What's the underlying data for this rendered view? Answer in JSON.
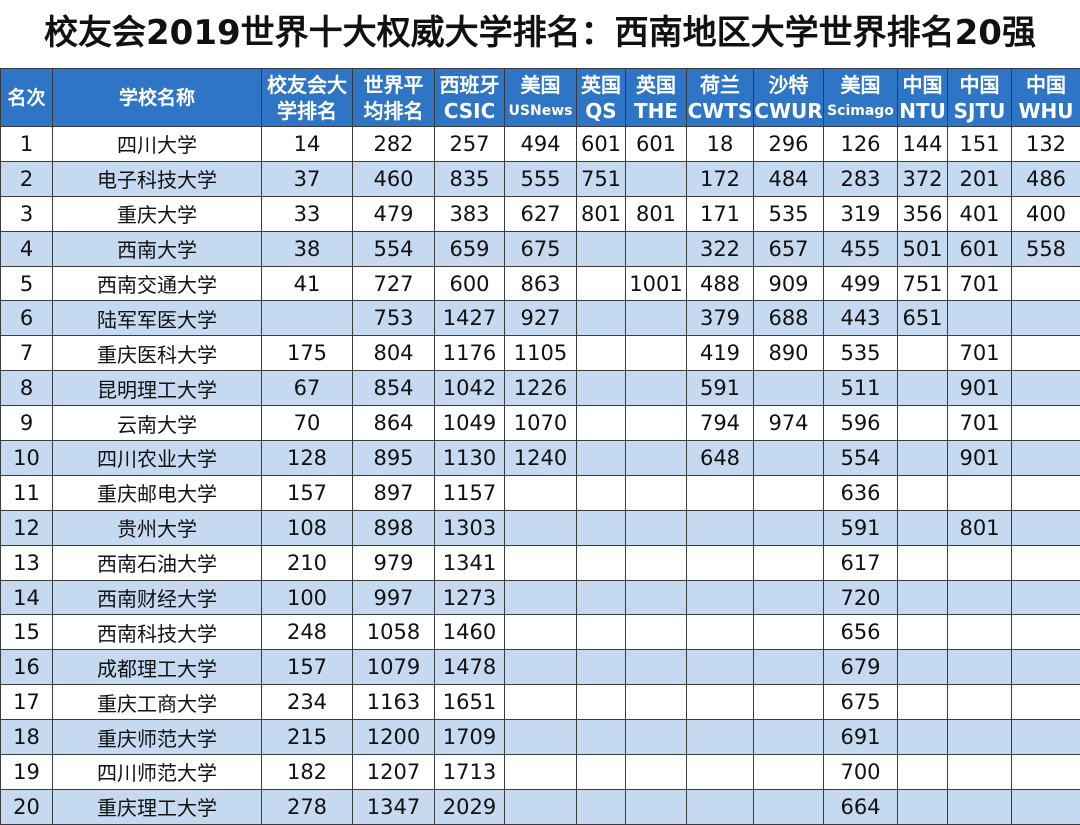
{
  "title": "校友会2019世界十大权威大学排名：西南地区大学世界排名20强",
  "headers": [
    {
      "l1": "名次",
      "l2": ""
    },
    {
      "l1": "学校名称",
      "l2": ""
    },
    {
      "l1": "校友会大",
      "l2": "学排名"
    },
    {
      "l1": "世界平",
      "l2": "均排名"
    },
    {
      "l1": "西班牙",
      "l2": "CSIC"
    },
    {
      "l1": "美国",
      "l2": "USNews"
    },
    {
      "l1": "英国",
      "l2": "QS"
    },
    {
      "l1": "英国",
      "l2": "THE"
    },
    {
      "l1": "荷兰",
      "l2": "CWTS"
    },
    {
      "l1": "沙特",
      "l2": "CWUR"
    },
    {
      "l1": "美国",
      "l2": "Scimago"
    },
    {
      "l1": "中国",
      "l2": "NTU"
    },
    {
      "l1": "中国",
      "l2": "SJTU"
    },
    {
      "l1": "中国",
      "l2": "WHU"
    }
  ],
  "rows": [
    [
      "1",
      "四川大学",
      "14",
      "282",
      "257",
      "494",
      "601",
      "601",
      "18",
      "296",
      "126",
      "144",
      "151",
      "132"
    ],
    [
      "2",
      "电子科技大学",
      "37",
      "460",
      "835",
      "555",
      "751",
      "",
      "172",
      "484",
      "283",
      "372",
      "201",
      "486"
    ],
    [
      "3",
      "重庆大学",
      "33",
      "479",
      "383",
      "627",
      "801",
      "801",
      "171",
      "535",
      "319",
      "356",
      "401",
      "400"
    ],
    [
      "4",
      "西南大学",
      "38",
      "554",
      "659",
      "675",
      "",
      "",
      "322",
      "657",
      "455",
      "501",
      "601",
      "558"
    ],
    [
      "5",
      "西南交通大学",
      "41",
      "727",
      "600",
      "863",
      "",
      "1001",
      "488",
      "909",
      "499",
      "751",
      "701",
      ""
    ],
    [
      "6",
      "陆军军医大学",
      "",
      "753",
      "1427",
      "927",
      "",
      "",
      "379",
      "688",
      "443",
      "651",
      "",
      ""
    ],
    [
      "7",
      "重庆医科大学",
      "175",
      "804",
      "1176",
      "1105",
      "",
      "",
      "419",
      "890",
      "535",
      "",
      "701",
      ""
    ],
    [
      "8",
      "昆明理工大学",
      "67",
      "854",
      "1042",
      "1226",
      "",
      "",
      "591",
      "",
      "511",
      "",
      "901",
      ""
    ],
    [
      "9",
      "云南大学",
      "70",
      "864",
      "1049",
      "1070",
      "",
      "",
      "794",
      "974",
      "596",
      "",
      "701",
      ""
    ],
    [
      "10",
      "四川农业大学",
      "128",
      "895",
      "1130",
      "1240",
      "",
      "",
      "648",
      "",
      "554",
      "",
      "901",
      ""
    ],
    [
      "11",
      "重庆邮电大学",
      "157",
      "897",
      "1157",
      "",
      "",
      "",
      "",
      "",
      "636",
      "",
      "",
      ""
    ],
    [
      "12",
      "贵州大学",
      "108",
      "898",
      "1303",
      "",
      "",
      "",
      "",
      "",
      "591",
      "",
      "801",
      ""
    ],
    [
      "13",
      "西南石油大学",
      "210",
      "979",
      "1341",
      "",
      "",
      "",
      "",
      "",
      "617",
      "",
      "",
      ""
    ],
    [
      "14",
      "西南财经大学",
      "100",
      "997",
      "1273",
      "",
      "",
      "",
      "",
      "",
      "720",
      "",
      "",
      ""
    ],
    [
      "15",
      "西南科技大学",
      "248",
      "1058",
      "1460",
      "",
      "",
      "",
      "",
      "",
      "656",
      "",
      "",
      ""
    ],
    [
      "16",
      "成都理工大学",
      "157",
      "1079",
      "1478",
      "",
      "",
      "",
      "",
      "",
      "679",
      "",
      "",
      ""
    ],
    [
      "17",
      "重庆工商大学",
      "234",
      "1163",
      "1651",
      "",
      "",
      "",
      "",
      "",
      "675",
      "",
      "",
      ""
    ],
    [
      "18",
      "重庆师范大学",
      "215",
      "1200",
      "1709",
      "",
      "",
      "",
      "",
      "",
      "691",
      "",
      "",
      ""
    ],
    [
      "19",
      "四川师范大学",
      "182",
      "1207",
      "1713",
      "",
      "",
      "",
      "",
      "",
      "700",
      "",
      "",
      ""
    ],
    [
      "20",
      "重庆理工大学",
      "278",
      "1347",
      "2029",
      "",
      "",
      "",
      "",
      "",
      "664",
      "",
      "",
      ""
    ]
  ],
  "colors": {
    "header_bg": "#2e75c6",
    "alt_row_bg": "#c5d9f1",
    "row_bg": "#ffffff"
  }
}
